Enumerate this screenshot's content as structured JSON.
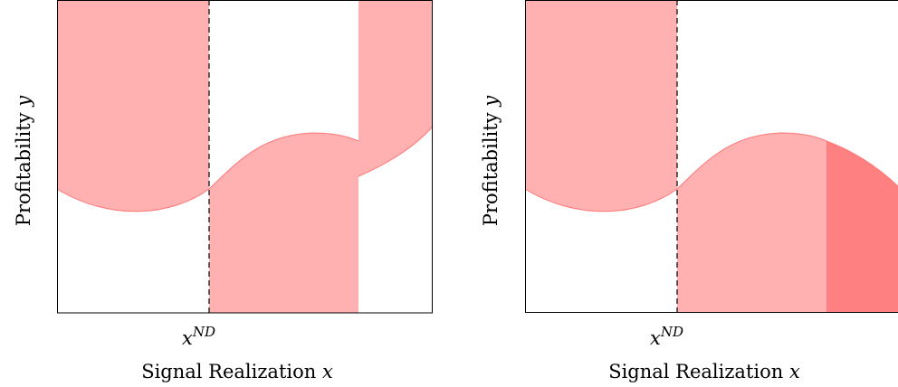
{
  "panels": [
    {
      "id": "left",
      "ylabel_text": "Profitability ",
      "ylabel_var": "y",
      "xlabel_text": "Signal Realization ",
      "xlabel_var": "x",
      "threshold_base": "x",
      "threshold_sup": "ND"
    },
    {
      "id": "right",
      "ylabel_text": "Profitability ",
      "ylabel_var": "y",
      "xlabel_text": "Signal Realization ",
      "xlabel_var": "x",
      "threshold_base": "x",
      "threshold_sup": "ND"
    }
  ],
  "colors": {
    "light_region": "#ffb0b0",
    "dark_region": "#ff8080",
    "boundary_line": "#ff7777",
    "frame": "#000000",
    "threshold_line": "#000000"
  }
}
